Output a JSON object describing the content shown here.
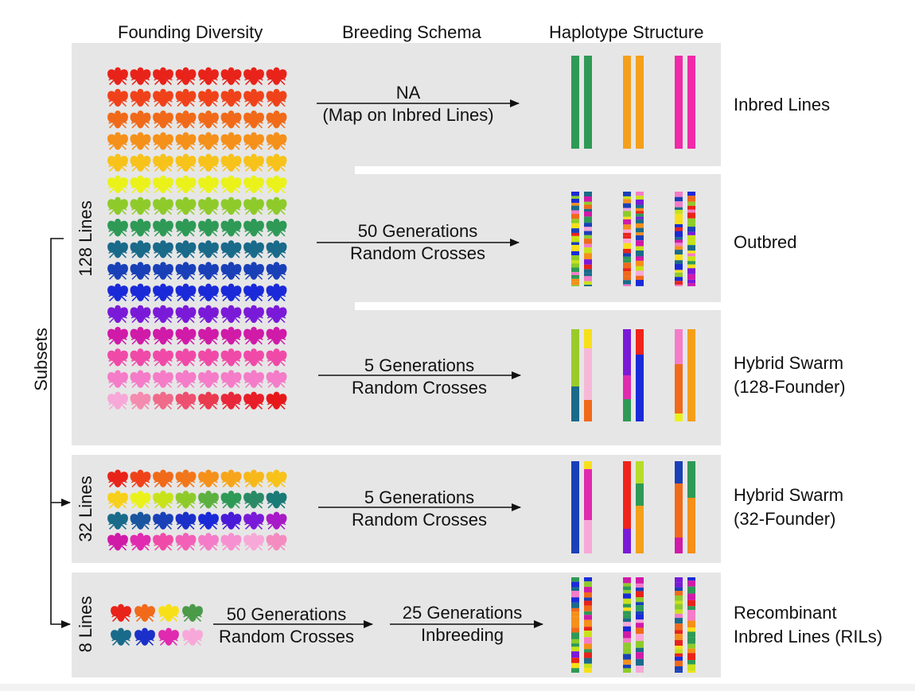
{
  "headers": {
    "founding": "Founding Diversity",
    "breeding": "Breeding Schema",
    "haplotype": "Haplotype Structure"
  },
  "left_labels": {
    "subsets": "Subsets",
    "lines128": "128 Lines",
    "lines32": "32 Lines",
    "lines8": "8 Lines"
  },
  "rows": [
    {
      "id": "inbred",
      "arrow": [
        "NA",
        "(Map on Inbred Lines)"
      ],
      "label": [
        "Inbred Lines"
      ]
    },
    {
      "id": "outbred",
      "arrow": [
        "50 Generations",
        "Random Crosses"
      ],
      "label": [
        "Outbred"
      ]
    },
    {
      "id": "hybrid128",
      "arrow": [
        "5 Generations",
        "Random Crosses"
      ],
      "label": [
        "Hybrid Swarm",
        "(128-Founder)"
      ]
    },
    {
      "id": "hybrid32",
      "arrow": [
        "5 Generations",
        "Random Crosses"
      ],
      "label": [
        "Hybrid Swarm",
        "(32-Founder)"
      ]
    },
    {
      "id": "ril",
      "arrow": [
        "50 Generations",
        "Random Crosses"
      ],
      "arrow2": [
        "25 Generations",
        "Inbreeding"
      ],
      "label": [
        "Recombinant",
        "Inbred Lines (RILs)"
      ]
    }
  ],
  "colors": {
    "fly_rows_128": [
      "#e8231a",
      "#f0421a",
      "#f06a1a",
      "#f5901a",
      "#f7c21a",
      "#eaf21a",
      "#8ecb2a",
      "#2e9a56",
      "#1a6a8a",
      "#1a40b8",
      "#1a2ad8",
      "#7a1ad8",
      "#d01aa8",
      "#f04aa8",
      "#f47cc8",
      "#f7a8d8"
    ],
    "fly_last_row_128": [
      "#f7a8d8",
      "#f48cb0",
      "#f06a8a",
      "#ee5070",
      "#ea3a50",
      "#e8283a",
      "#e81e28",
      "#e8181a"
    ],
    "fly_rows_32": [
      [
        "#e8231a",
        "#f0421a",
        "#f06a1a",
        "#f2761a",
        "#f5901a",
        "#f7a51a",
        "#f7b81a",
        "#f7c21a"
      ],
      [
        "#f7d01a",
        "#eaf21a",
        "#c8e21a",
        "#8ecb2a",
        "#5cb040",
        "#2e9a56",
        "#2a8a66",
        "#1a7a76"
      ],
      [
        "#1a6a8a",
        "#1a56a0",
        "#1a40b8",
        "#1a30c8",
        "#1a2ad8",
        "#4a1ad8",
        "#7a1ad8",
        "#a81ac8"
      ],
      [
        "#d01aa8",
        "#e02ab0",
        "#f04aa8",
        "#f260b8",
        "#f47cc8",
        "#f690d0",
        "#f7a8d8",
        "#f58cc0"
      ]
    ],
    "fly_rows_8": [
      [
        "#e8231a",
        "#f06a1a",
        "#f7e01a",
        "#4a9a4a"
      ],
      [
        "#1a6a8a",
        "#1a30c8",
        "#e02ab0",
        "#f7a8d8"
      ]
    ],
    "inbred_bars": [
      "#2e9a56",
      "#f5a01a",
      "#f02aa8"
    ]
  }
}
